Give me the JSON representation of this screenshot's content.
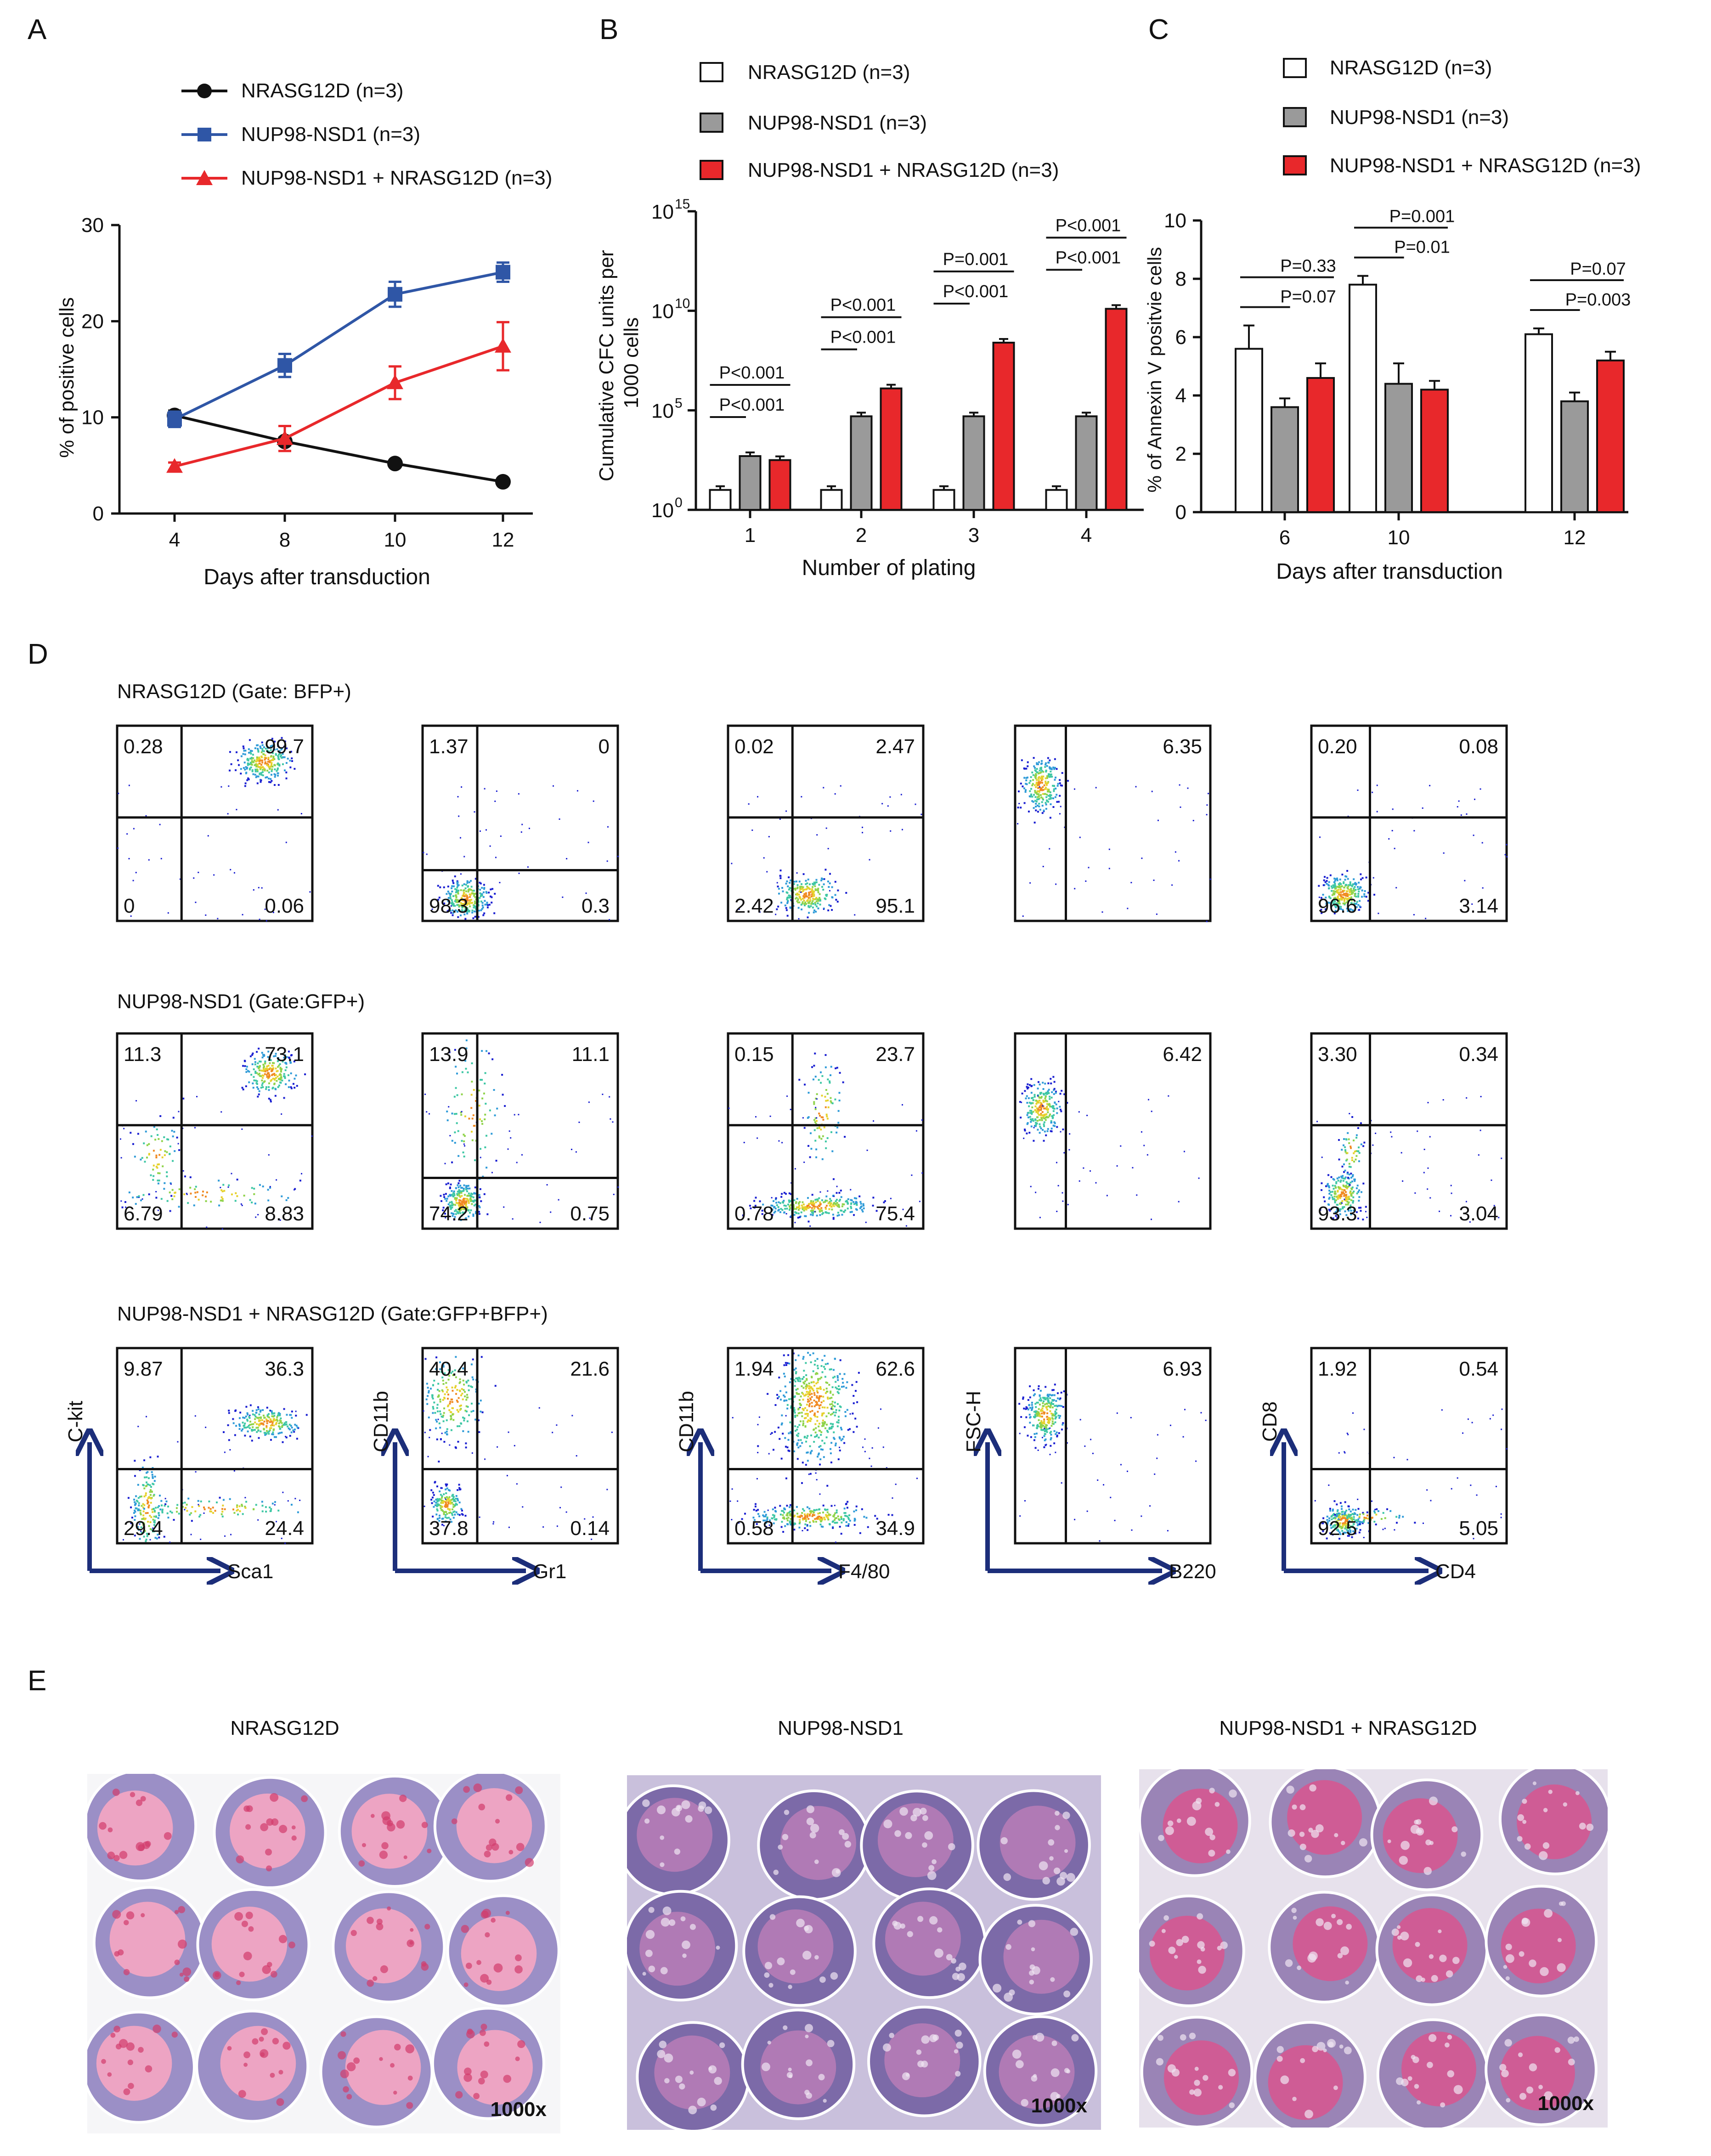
{
  "panel_letters": {
    "A": "A",
    "B": "B",
    "C": "C",
    "D": "D",
    "E": "E"
  },
  "colors": {
    "black": "#111111",
    "blue": "#2f56a6",
    "red": "#e8282b",
    "gray": "#9a9a9a",
    "white": "#ffffff",
    "navy": "#1c2e7a"
  },
  "chart_data": [
    {
      "panel": "A",
      "type": "line",
      "xlabel": "Days after transduction",
      "ylabel": "% of positive cells",
      "x": [
        4,
        8,
        10,
        12
      ],
      "xticks": [
        "4",
        "8",
        "10",
        "12"
      ],
      "ylim": [
        0,
        30
      ],
      "yticks": [
        "0",
        "10",
        "20",
        "30"
      ],
      "series": [
        {
          "name": "NRASG12D (n=3)",
          "color": "#111111",
          "marker": "circle",
          "values": [
            10.2,
            7.5,
            5.2,
            3.3
          ],
          "errors": [
            0.5,
            0.4,
            0.3,
            0.3
          ]
        },
        {
          "name": "NUP98-NSD1 (n=3)",
          "color": "#2f56a6",
          "marker": "square",
          "values": [
            9.8,
            15.4,
            22.8,
            25.1
          ],
          "errors": [
            0.8,
            1.2,
            1.3,
            1.0
          ]
        },
        {
          "name": "NUP98-NSD1 + NRASG12D (n=3)",
          "color": "#e8282b",
          "marker": "triangle",
          "values": [
            4.9,
            7.8,
            13.6,
            17.4
          ],
          "errors": [
            0.4,
            1.3,
            1.7,
            2.5
          ]
        }
      ]
    },
    {
      "panel": "B",
      "type": "bar",
      "scale": "log10",
      "xlabel": "Number of plating",
      "ylabel_line1": "Cumulative CFC units per",
      "ylabel_line2": "1000 cells",
      "categories": [
        "1",
        "2",
        "3",
        "4"
      ],
      "ylim_log10": [
        0,
        15
      ],
      "ytick_base": "10",
      "ytick_exps": [
        "0",
        "5",
        "10",
        "15"
      ],
      "series": [
        {
          "name": "NRASG12D (n=3)",
          "color": "#ffffff",
          "log10_values": [
            1.0,
            1.0,
            1.0,
            1.0
          ]
        },
        {
          "name": "NUP98-NSD1 (n=3)",
          "color": "#9a9a9a",
          "log10_values": [
            2.7,
            4.7,
            4.7,
            4.7
          ]
        },
        {
          "name": "NUP98-NSD1 + NRASG12D (n=3)",
          "color": "#e8282b",
          "log10_values": [
            2.5,
            6.1,
            8.4,
            10.1
          ]
        }
      ],
      "annotations": [
        {
          "group": 0,
          "lower": "P<0.001",
          "upper": "P<0.001"
        },
        {
          "group": 1,
          "lower": "P<0.001",
          "upper": "P<0.001"
        },
        {
          "group": 2,
          "lower": "P<0.001",
          "upper": "P=0.001"
        },
        {
          "group": 3,
          "lower": "P<0.001",
          "upper": "P<0.001"
        }
      ]
    },
    {
      "panel": "C",
      "type": "bar",
      "xlabel": "Days after transduction",
      "ylabel": "% of Annexin V positvie cells",
      "categories": [
        "6",
        "10",
        "12"
      ],
      "ylim": [
        0,
        10
      ],
      "yticks": [
        "0",
        "2",
        "4",
        "6",
        "8",
        "10"
      ],
      "series": [
        {
          "name": "NRASG12D (n=3)",
          "color": "#ffffff",
          "values": [
            5.6,
            7.8,
            6.1
          ],
          "errors": [
            0.8,
            0.3,
            0.2
          ]
        },
        {
          "name": "NUP98-NSD1 (n=3)",
          "color": "#9a9a9a",
          "values": [
            3.6,
            4.4,
            3.8
          ],
          "errors": [
            0.3,
            0.7,
            0.3
          ]
        },
        {
          "name": "NUP98-NSD1 + NRASG12D (n=3)",
          "color": "#e8282b",
          "values": [
            4.6,
            4.2,
            5.2
          ],
          "errors": [
            0.5,
            0.3,
            0.3
          ]
        }
      ],
      "annotations": [
        {
          "group": 0,
          "lower": "P=0.07",
          "upper": "P=0.33"
        },
        {
          "group": 1,
          "lower": "P=0.01",
          "upper": "P=0.001"
        },
        {
          "group": 2,
          "lower": "P=0.003",
          "upper": "P=0.07"
        }
      ]
    }
  ],
  "panel_d": {
    "rows": [
      {
        "title": "NRASG12D (Gate: BFP+)",
        "plots": [
          [
            "0.28",
            "99.7",
            "0",
            "0.06"
          ],
          [
            "1.37",
            "0",
            "98.3",
            "0.3"
          ],
          [
            "0.02",
            "2.47",
            "2.42",
            "95.1"
          ],
          [
            "",
            "6.35",
            "",
            ""
          ],
          [
            "0.20",
            "0.08",
            "96.6",
            "3.14"
          ]
        ]
      },
      {
        "title": "NUP98-NSD1 (Gate:GFP+)",
        "plots": [
          [
            "11.3",
            "73.1",
            "6.79",
            "8.83"
          ],
          [
            "13.9",
            "11.1",
            "74.2",
            "0.75"
          ],
          [
            "0.15",
            "23.7",
            "0.78",
            "75.4"
          ],
          [
            "",
            "6.42",
            "",
            ""
          ],
          [
            "3.30",
            "0.34",
            "93.3",
            "3.04"
          ]
        ]
      },
      {
        "title": "NUP98-NSD1 + NRASG12D (Gate:GFP+BFP+)",
        "plots": [
          [
            "9.87",
            "36.3",
            "29.4",
            "24.4"
          ],
          [
            "40.4",
            "21.6",
            "37.8",
            "0.14"
          ],
          [
            "1.94",
            "62.6",
            "0.58",
            "34.9"
          ],
          [
            "",
            "6.93",
            "",
            ""
          ],
          [
            "1.92",
            "0.54",
            "92.5",
            "5.05"
          ]
        ]
      }
    ],
    "axes": [
      {
        "y": "C-kit",
        "x": "Sca1"
      },
      {
        "y": "CD11b",
        "x": "Gr1"
      },
      {
        "y": "CD11b",
        "x": "F4/80"
      },
      {
        "y": "FSC-H",
        "x": "B220"
      },
      {
        "y": "CD8",
        "x": "CD4"
      }
    ]
  },
  "panel_e": {
    "images": [
      {
        "title": "NRASG12D",
        "magnification": "1000x"
      },
      {
        "title": "NUP98-NSD1",
        "magnification": "1000x"
      },
      {
        "title": "NUP98-NSD1 + NRASG12D",
        "magnification": "1000x"
      }
    ]
  }
}
